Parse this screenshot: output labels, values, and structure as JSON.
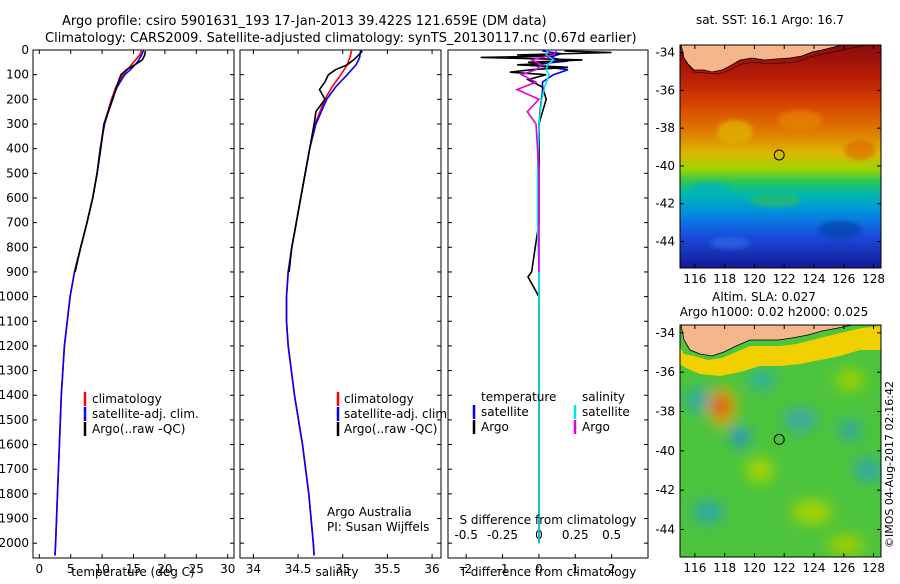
{
  "title_line1": "Argo profile: csiro 5901631_193 17-Jan-2013 39.422S 121.659E (DM data)",
  "title_line2": "Climatology: CARS2009. Satellite-adjusted climatology: synTS_20130117.nc (0.67d earlier)",
  "copyright": "©IMOS 04-Aug-2017 02:16:42",
  "attribution": [
    "Argo Australia",
    "PI: Susan Wijffels"
  ],
  "colors": {
    "clim": "#ff0000",
    "sat": "#0000ff",
    "argo": "#000000",
    "sal_sat": "#00e5e5",
    "sal_argo": "#e000e0"
  },
  "chart_data": [
    {
      "id": "temperature",
      "type": "line",
      "xlabel": "temperature (deg C)",
      "xlim": [
        -1,
        31
      ],
      "xticks": [
        0,
        5,
        10,
        15,
        20,
        25,
        30
      ],
      "ylim": [
        0,
        2060
      ],
      "yticks": [
        0,
        100,
        200,
        300,
        400,
        500,
        600,
        700,
        800,
        900,
        1000,
        1100,
        1200,
        1300,
        1400,
        1500,
        1600,
        1700,
        1800,
        1900,
        2000
      ],
      "legend": [
        "climatology",
        "satellite-adj. clim.",
        "Argo(..raw -QC)"
      ],
      "series": [
        {
          "name": "climatology",
          "color": "clim",
          "depth": [
            0,
            20,
            50,
            80,
            100,
            150,
            200,
            300,
            400,
            500,
            600,
            700,
            800,
            900,
            1000,
            1200,
            1400,
            1600,
            1800,
            2000,
            2050
          ],
          "value": [
            16.3,
            16.0,
            15.0,
            14.0,
            13.3,
            12.2,
            11.5,
            10.3,
            9.7,
            9.2,
            8.5,
            7.6,
            6.6,
            5.6,
            4.9,
            4.0,
            3.5,
            3.2,
            2.9,
            2.6,
            2.5
          ]
        },
        {
          "name": "satellite-adj. clim.",
          "color": "sat",
          "depth": [
            0,
            20,
            50,
            80,
            100,
            150,
            200,
            300,
            400,
            500,
            600,
            700,
            800,
            900,
            1000,
            1200,
            1400,
            1600,
            1800,
            2000,
            2050
          ],
          "value": [
            16.6,
            16.3,
            15.6,
            14.5,
            13.6,
            12.4,
            11.6,
            10.4,
            9.7,
            9.2,
            8.5,
            7.6,
            6.6,
            5.6,
            4.9,
            4.0,
            3.5,
            3.2,
            2.9,
            2.6,
            2.5
          ]
        },
        {
          "name": "Argo(..raw -QC)",
          "color": "argo",
          "depth": [
            4,
            20,
            40,
            60,
            80,
            100,
            150,
            200,
            300,
            400,
            500,
            600,
            700,
            800,
            900
          ],
          "value": [
            16.9,
            16.8,
            16.4,
            15.2,
            13.9,
            13.0,
            12.3,
            11.7,
            10.3,
            9.8,
            9.2,
            8.5,
            7.6,
            6.6,
            5.7
          ]
        }
      ]
    },
    {
      "id": "salinity",
      "type": "line",
      "xlabel": "salinity",
      "xlim": [
        33.85,
        36.1
      ],
      "xticks": [
        34,
        34.5,
        35,
        35.5,
        36
      ],
      "ylim": [
        0,
        2060
      ],
      "legend": [
        "climatology",
        "satellite-adj. clim.",
        "Argo(..raw -QC)"
      ],
      "series": [
        {
          "name": "climatology",
          "color": "clim",
          "depth": [
            0,
            30,
            60,
            100,
            150,
            200,
            300,
            400,
            500,
            600,
            700,
            800,
            900,
            1000,
            1100,
            1200,
            1400,
            1600,
            1800,
            2000,
            2050
          ],
          "value": [
            35.1,
            35.08,
            35.05,
            34.98,
            34.88,
            34.8,
            34.69,
            34.63,
            34.58,
            34.53,
            34.48,
            34.43,
            34.39,
            34.37,
            34.37,
            34.39,
            34.46,
            34.55,
            34.62,
            34.67,
            34.68
          ]
        },
        {
          "name": "satellite-adj. clim.",
          "color": "sat",
          "depth": [
            0,
            30,
            60,
            100,
            150,
            200,
            300,
            400,
            500,
            600,
            700,
            800,
            900,
            1000,
            1100,
            1200,
            1400,
            1600,
            1800,
            2000,
            2050
          ],
          "value": [
            35.2,
            35.19,
            35.15,
            35.05,
            34.92,
            34.82,
            34.7,
            34.63,
            34.58,
            34.53,
            34.48,
            34.43,
            34.39,
            34.37,
            34.37,
            34.39,
            34.46,
            34.55,
            34.62,
            34.67,
            34.68
          ]
        },
        {
          "name": "Argo(..raw -QC)",
          "color": "argo",
          "depth": [
            4,
            20,
            40,
            60,
            80,
            100,
            130,
            160,
            200,
            250,
            300,
            400,
            500,
            600,
            700,
            800,
            900
          ],
          "value": [
            35.22,
            35.18,
            35.12,
            35.05,
            34.92,
            34.84,
            34.8,
            34.74,
            34.8,
            34.7,
            34.68,
            34.63,
            34.58,
            34.53,
            34.48,
            34.43,
            34.4
          ]
        }
      ]
    },
    {
      "id": "differences",
      "type": "line",
      "xlabel_top": "S difference from climatology",
      "xlabel": "T difference from climatology",
      "xlim": [
        -2.5,
        3
      ],
      "t_ticks": [
        -2,
        -1,
        0,
        1,
        2
      ],
      "s_ticks": [
        {
          "v": -0.5,
          "label": "-0.5"
        },
        {
          "v": -0.25,
          "label": "-0.25"
        },
        {
          "v": 0,
          "label": "0"
        },
        {
          "v": 0.25,
          "label": "0.25"
        },
        {
          "v": 0.5,
          "label": "0.5"
        }
      ],
      "s_scale": 4,
      "ylim": [
        0,
        2060
      ],
      "legend_left_title": "temperature",
      "legend_right_title": "salinity",
      "legend_left": [
        "satellite",
        "Argo"
      ],
      "legend_right": [
        "satellite",
        "Argo"
      ],
      "series": [
        {
          "name": "T satellite",
          "color": "sat",
          "depth": [
            4,
            15,
            30,
            45,
            60,
            80,
            100,
            130,
            170,
            220,
            300,
            500,
            700,
            900,
            1000,
            1200,
            1500,
            2000
          ],
          "value": [
            0.1,
            0.6,
            0.3,
            0.8,
            -0.3,
            0.8,
            0.4,
            0.1,
            0.1,
            0.05,
            0.0,
            0.0,
            0.0,
            0.0,
            0.0,
            0.0,
            0.0,
            0.0
          ]
        },
        {
          "name": "T Argo",
          "color": "argo",
          "depth": [
            4,
            10,
            20,
            25,
            30,
            40,
            50,
            55,
            60,
            70,
            80,
            90,
            100,
            120,
            150,
            200,
            300,
            500,
            700,
            900,
            920,
            1000,
            1200,
            1500,
            2000
          ],
          "value": [
            0.7,
            2.0,
            -0.6,
            0.4,
            -1.6,
            1.2,
            -0.3,
            0.2,
            -0.6,
            0.8,
            -0.2,
            -0.8,
            0.2,
            -0.3,
            0.1,
            0.2,
            0.0,
            0.0,
            0.0,
            -0.2,
            -0.3,
            0.0,
            0.0,
            0.0,
            0.0
          ]
        },
        {
          "name": "S satellite",
          "color": "sal_sat",
          "depth": [
            4,
            20,
            40,
            60,
            80,
            100,
            150,
            200,
            300,
            500,
            700,
            900,
            1100,
            1300,
            1500,
            1700,
            2000
          ],
          "value": [
            0.06,
            0.05,
            0.1,
            0.06,
            0.05,
            0.07,
            0.04,
            0.02,
            0.0,
            -0.01,
            -0.01,
            0.0,
            0.0,
            0.0,
            0.0,
            0.0,
            0.0
          ]
        },
        {
          "name": "S Argo",
          "color": "sal_argo",
          "depth": [
            4,
            20,
            40,
            60,
            80,
            100,
            130,
            160,
            200,
            250,
            300,
            400,
            500,
            700,
            900
          ],
          "value": [
            0.12,
            0.1,
            -0.05,
            0.02,
            -0.02,
            -0.12,
            -0.02,
            -0.15,
            0.0,
            -0.08,
            -0.02,
            -0.01,
            0.0,
            0.0,
            0.0
          ]
        }
      ]
    },
    {
      "id": "sst-map",
      "type": "heatmap",
      "title": "sat. SST: 16.1  Argo: 16.7",
      "xticks": [
        116,
        118,
        120,
        122,
        124,
        126,
        128
      ],
      "yticks": [
        -34,
        -36,
        -38,
        -40,
        -42,
        -44
      ],
      "xlim": [
        115,
        128.5
      ],
      "ylim": [
        -45.4,
        -33.6
      ],
      "marker": [
        121.66,
        -39.42
      ]
    },
    {
      "id": "sla-map",
      "type": "heatmap",
      "title_line1": "Altim. SLA: 0.027",
      "title_line2": "Argo h1000: 0.02  h2000: 0.025",
      "xticks": [
        116,
        118,
        120,
        122,
        124,
        126,
        128
      ],
      "yticks": [
        -34,
        -36,
        -38,
        -40,
        -42,
        -44
      ],
      "xlim": [
        115,
        128.5
      ],
      "ylim": [
        -45.4,
        -33.6
      ],
      "marker": [
        121.66,
        -39.42
      ]
    }
  ]
}
